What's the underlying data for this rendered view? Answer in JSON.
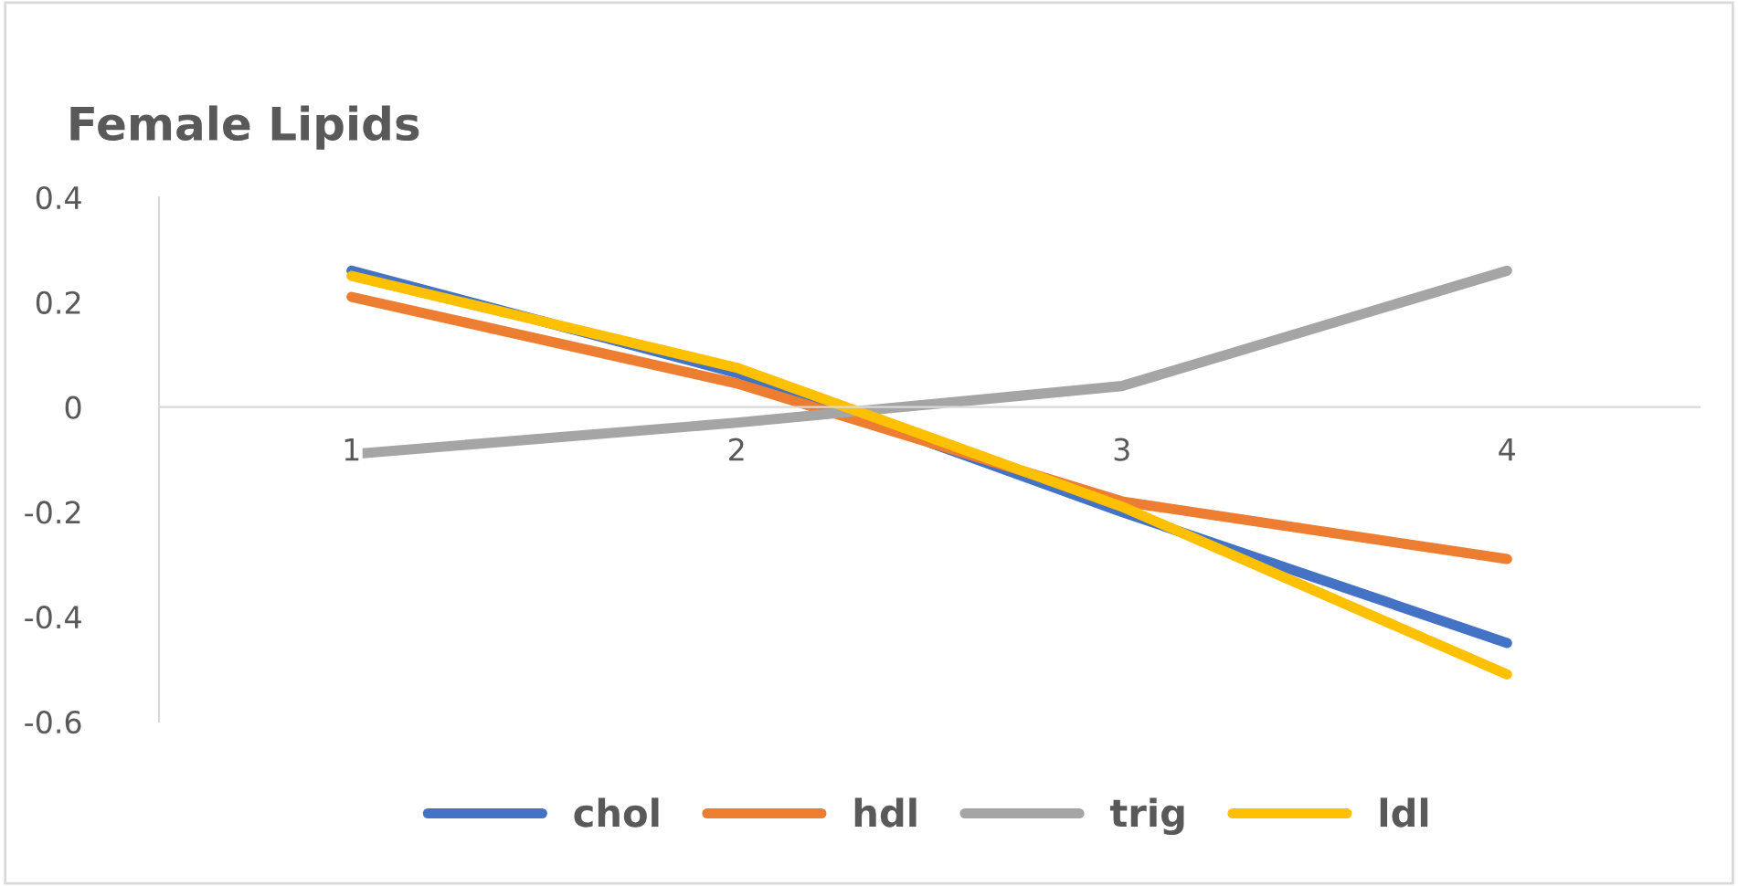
{
  "chart_data": {
    "type": "line",
    "title": "Female Lipids",
    "categories": [
      "1",
      "2",
      "3",
      "4"
    ],
    "series": [
      {
        "name": "chol",
        "color": "#4472c4",
        "values": [
          0.26,
          0.065,
          -0.2,
          -0.45
        ]
      },
      {
        "name": "hdl",
        "color": "#ed7d31",
        "values": [
          0.21,
          0.045,
          -0.18,
          -0.29
        ]
      },
      {
        "name": "trig",
        "color": "#a5a5a5",
        "values": [
          -0.09,
          -0.03,
          0.04,
          0.26
        ]
      },
      {
        "name": "ldl",
        "color": "#ffc000",
        "values": [
          0.25,
          0.075,
          -0.19,
          -0.51
        ]
      }
    ],
    "ylim": [
      -0.6,
      0.4
    ],
    "yticks": [
      -0.6,
      -0.4,
      -0.2,
      0,
      0.2,
      0.4
    ],
    "grid": false,
    "legend": "bottom",
    "marker": "none",
    "line_style": "solid"
  }
}
